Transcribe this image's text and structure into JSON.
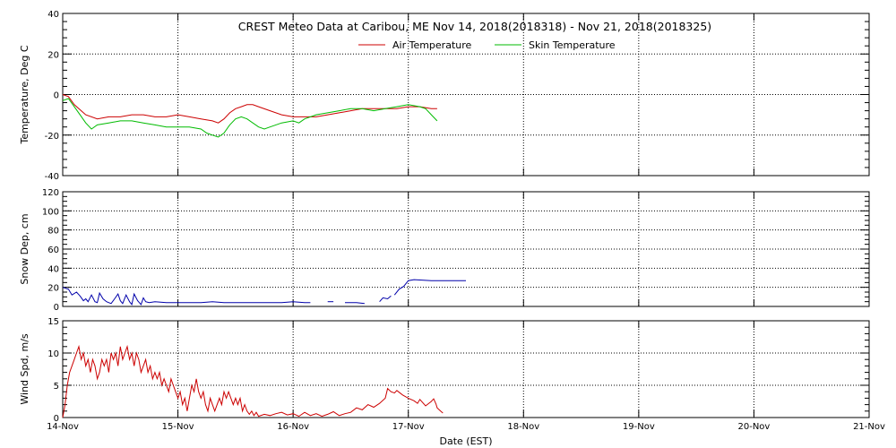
{
  "chart_data": [
    {
      "type": "line",
      "title": "CREST Meteo Data at Caribou, ME   Nov 14, 2018(2018318) - Nov 21, 2018(2018325)",
      "ylabel": "Temperature, Deg C",
      "ylim": [
        -40,
        40
      ],
      "yticks": [
        -40,
        -20,
        0,
        20,
        40
      ],
      "grid": true,
      "legend": "top-center",
      "series": [
        {
          "name": "Air Temperature",
          "color": "#cc0000",
          "points": [
            [
              0.0,
              0
            ],
            [
              0.05,
              -1
            ],
            [
              0.1,
              -5
            ],
            [
              0.2,
              -10
            ],
            [
              0.3,
              -12
            ],
            [
              0.4,
              -11
            ],
            [
              0.5,
              -11
            ],
            [
              0.6,
              -10
            ],
            [
              0.7,
              -10
            ],
            [
              0.8,
              -11
            ],
            [
              0.9,
              -11
            ],
            [
              1.0,
              -10
            ],
            [
              1.1,
              -11
            ],
            [
              1.2,
              -12
            ],
            [
              1.3,
              -13
            ],
            [
              1.35,
              -14
            ],
            [
              1.4,
              -12
            ],
            [
              1.45,
              -9
            ],
            [
              1.5,
              -7
            ],
            [
              1.55,
              -6
            ],
            [
              1.6,
              -5
            ],
            [
              1.65,
              -5
            ],
            [
              1.7,
              -6
            ],
            [
              1.8,
              -8
            ],
            [
              1.9,
              -10
            ],
            [
              2.0,
              -11
            ],
            [
              2.1,
              -11
            ],
            [
              2.2,
              -11
            ],
            [
              2.3,
              -10
            ],
            [
              2.4,
              -9
            ],
            [
              2.5,
              -8
            ],
            [
              2.6,
              -7
            ],
            [
              2.7,
              -7
            ],
            [
              2.8,
              -7
            ],
            [
              2.9,
              -7
            ],
            [
              3.0,
              -6
            ],
            [
              3.1,
              -6
            ],
            [
              3.2,
              -7
            ],
            [
              3.25,
              -7
            ]
          ]
        },
        {
          "name": "Skin Temperature",
          "color": "#00bb00",
          "points": [
            [
              0.0,
              -3
            ],
            [
              0.05,
              -2
            ],
            [
              0.1,
              -6
            ],
            [
              0.15,
              -10
            ],
            [
              0.2,
              -14
            ],
            [
              0.25,
              -17
            ],
            [
              0.3,
              -15
            ],
            [
              0.4,
              -14
            ],
            [
              0.5,
              -13
            ],
            [
              0.6,
              -13
            ],
            [
              0.7,
              -14
            ],
            [
              0.8,
              -15
            ],
            [
              0.9,
              -16
            ],
            [
              1.0,
              -16
            ],
            [
              1.1,
              -16
            ],
            [
              1.2,
              -17
            ],
            [
              1.25,
              -19
            ],
            [
              1.3,
              -20
            ],
            [
              1.35,
              -21
            ],
            [
              1.4,
              -19
            ],
            [
              1.45,
              -15
            ],
            [
              1.5,
              -12
            ],
            [
              1.55,
              -11
            ],
            [
              1.6,
              -12
            ],
            [
              1.7,
              -16
            ],
            [
              1.75,
              -17
            ],
            [
              1.8,
              -16
            ],
            [
              1.9,
              -14
            ],
            [
              2.0,
              -13
            ],
            [
              2.05,
              -14
            ],
            [
              2.1,
              -12
            ],
            [
              2.2,
              -10
            ],
            [
              2.3,
              -9
            ],
            [
              2.4,
              -8
            ],
            [
              2.5,
              -7
            ],
            [
              2.6,
              -7
            ],
            [
              2.7,
              -8
            ],
            [
              2.8,
              -7
            ],
            [
              2.9,
              -6
            ],
            [
              3.0,
              -5
            ],
            [
              3.1,
              -6
            ],
            [
              3.15,
              -7
            ],
            [
              3.2,
              -10
            ],
            [
              3.25,
              -13
            ]
          ]
        }
      ]
    },
    {
      "type": "line",
      "ylabel": "Snow Dep, cm",
      "ylim": [
        0,
        120
      ],
      "yticks": [
        0,
        20,
        40,
        60,
        80,
        100,
        120
      ],
      "grid": true,
      "series": [
        {
          "color": "#0000aa",
          "points": [
            [
              0.0,
              20
            ],
            [
              0.05,
              18
            ],
            [
              0.08,
              12
            ],
            [
              0.12,
              15
            ],
            [
              0.15,
              11
            ],
            [
              0.18,
              6
            ],
            [
              0.2,
              8
            ],
            [
              0.22,
              5
            ],
            [
              0.25,
              12
            ],
            [
              0.28,
              5
            ],
            [
              0.3,
              4
            ],
            [
              0.32,
              14
            ],
            [
              0.35,
              8
            ],
            [
              0.38,
              5
            ],
            [
              0.42,
              3
            ],
            [
              0.45,
              8
            ],
            [
              0.48,
              13
            ],
            [
              0.5,
              6
            ],
            [
              0.52,
              3
            ],
            [
              0.55,
              12
            ],
            [
              0.58,
              5
            ],
            [
              0.6,
              2
            ],
            [
              0.62,
              13
            ],
            [
              0.65,
              6
            ],
            [
              0.68,
              2
            ],
            [
              0.7,
              9
            ],
            [
              0.72,
              5
            ],
            [
              0.75,
              4
            ],
            [
              0.8,
              5
            ],
            [
              0.9,
              4
            ],
            [
              1.0,
              4
            ],
            [
              1.1,
              4
            ],
            [
              1.2,
              4
            ],
            [
              1.3,
              5
            ],
            [
              1.4,
              4
            ],
            [
              1.5,
              4
            ],
            [
              1.6,
              4
            ],
            [
              1.7,
              4
            ],
            [
              1.8,
              4
            ],
            [
              1.9,
              4
            ],
            [
              2.0,
              5
            ],
            [
              2.1,
              4
            ],
            [
              2.15,
              4
            ]
          ],
          "points_b": [
            [
              2.3,
              5
            ],
            [
              2.35,
              5
            ]
          ],
          "points_c": [
            [
              2.45,
              4
            ],
            [
              2.55,
              4
            ],
            [
              2.62,
              3
            ]
          ],
          "points_d": [
            [
              2.75,
              5
            ],
            [
              2.78,
              9
            ],
            [
              2.82,
              8
            ],
            [
              2.85,
              11
            ]
          ],
          "points_e": [
            [
              2.88,
              12
            ],
            [
              2.92,
              18
            ],
            [
              2.96,
              21
            ],
            [
              3.0,
              27
            ],
            [
              3.05,
              28
            ],
            [
              3.2,
              27
            ],
            [
              3.4,
              27
            ],
            [
              3.5,
              27
            ]
          ]
        }
      ]
    },
    {
      "type": "line",
      "xlabel": "Date (EST)",
      "ylabel": "Wind Spd, m/s",
      "ylim": [
        0,
        15
      ],
      "yticks": [
        0,
        5,
        10,
        15
      ],
      "x_tick_labels": [
        "14-Nov",
        "15-Nov",
        "16-Nov",
        "17-Nov",
        "18-Nov",
        "19-Nov",
        "20-Nov",
        "21-Nov"
      ],
      "xlim_days": [
        0,
        7
      ],
      "grid": true,
      "series": [
        {
          "color": "#cc0000",
          "points": [
            [
              0.0,
              0
            ],
            [
              0.02,
              2
            ],
            [
              0.04,
              5
            ],
            [
              0.06,
              7
            ],
            [
              0.08,
              8
            ],
            [
              0.1,
              9
            ],
            [
              0.12,
              10
            ],
            [
              0.14,
              11
            ],
            [
              0.16,
              9
            ],
            [
              0.18,
              10
            ],
            [
              0.2,
              8
            ],
            [
              0.22,
              9
            ],
            [
              0.24,
              7
            ],
            [
              0.26,
              9
            ],
            [
              0.28,
              8
            ],
            [
              0.3,
              6
            ],
            [
              0.32,
              7
            ],
            [
              0.34,
              9
            ],
            [
              0.36,
              8
            ],
            [
              0.38,
              9
            ],
            [
              0.4,
              7
            ],
            [
              0.42,
              10
            ],
            [
              0.44,
              9
            ],
            [
              0.46,
              10
            ],
            [
              0.48,
              8
            ],
            [
              0.5,
              11
            ],
            [
              0.52,
              9
            ],
            [
              0.54,
              10
            ],
            [
              0.56,
              11
            ],
            [
              0.58,
              9
            ],
            [
              0.6,
              10
            ],
            [
              0.62,
              8
            ],
            [
              0.64,
              10
            ],
            [
              0.66,
              9
            ],
            [
              0.68,
              7
            ],
            [
              0.7,
              8
            ],
            [
              0.72,
              9
            ],
            [
              0.74,
              7
            ],
            [
              0.76,
              8
            ],
            [
              0.78,
              6
            ],
            [
              0.8,
              7
            ],
            [
              0.82,
              6
            ],
            [
              0.84,
              7
            ],
            [
              0.86,
              5
            ],
            [
              0.88,
              6
            ],
            [
              0.9,
              5
            ],
            [
              0.92,
              4
            ],
            [
              0.94,
              6
            ],
            [
              0.96,
              5
            ],
            [
              0.98,
              4
            ],
            [
              1.0,
              3
            ],
            [
              1.02,
              4
            ],
            [
              1.04,
              2
            ],
            [
              1.06,
              3
            ],
            [
              1.08,
              1
            ],
            [
              1.1,
              3
            ],
            [
              1.12,
              5
            ],
            [
              1.14,
              4
            ],
            [
              1.16,
              6
            ],
            [
              1.18,
              4
            ],
            [
              1.2,
              3
            ],
            [
              1.22,
              4
            ],
            [
              1.24,
              2
            ],
            [
              1.26,
              1
            ],
            [
              1.28,
              3
            ],
            [
              1.3,
              2
            ],
            [
              1.32,
              1
            ],
            [
              1.34,
              2
            ],
            [
              1.36,
              3
            ],
            [
              1.38,
              2
            ],
            [
              1.4,
              4
            ],
            [
              1.42,
              3
            ],
            [
              1.44,
              4
            ],
            [
              1.46,
              3
            ],
            [
              1.48,
              2
            ],
            [
              1.5,
              3
            ],
            [
              1.52,
              2
            ],
            [
              1.54,
              3
            ],
            [
              1.56,
              1
            ],
            [
              1.58,
              2
            ],
            [
              1.6,
              1
            ],
            [
              1.62,
              0.5
            ],
            [
              1.64,
              1
            ],
            [
              1.66,
              0.3
            ],
            [
              1.68,
              0.8
            ],
            [
              1.7,
              0.2
            ],
            [
              1.75,
              0.5
            ],
            [
              1.8,
              0.3
            ],
            [
              1.85,
              0.6
            ],
            [
              1.9,
              0.8
            ],
            [
              1.95,
              0.4
            ],
            [
              2.0,
              0.6
            ],
            [
              2.05,
              0.2
            ],
            [
              2.1,
              0.8
            ],
            [
              2.15,
              0.3
            ],
            [
              2.2,
              0.6
            ],
            [
              2.25,
              0.2
            ],
            [
              2.3,
              0.5
            ],
            [
              2.35,
              0.9
            ],
            [
              2.4,
              0.3
            ],
            [
              2.45,
              0.6
            ],
            [
              2.5,
              0.8
            ],
            [
              2.55,
              1.5
            ],
            [
              2.6,
              1.2
            ],
            [
              2.65,
              2
            ],
            [
              2.7,
              1.6
            ],
            [
              2.75,
              2.2
            ],
            [
              2.8,
              3
            ],
            [
              2.82,
              4.5
            ],
            [
              2.85,
              4
            ],
            [
              2.88,
              3.8
            ],
            [
              2.9,
              4.2
            ],
            [
              2.95,
              3.5
            ],
            [
              3.0,
              3
            ],
            [
              3.05,
              2.6
            ],
            [
              3.08,
              2.2
            ],
            [
              3.1,
              2.8
            ],
            [
              3.15,
              1.8
            ],
            [
              3.2,
              2.5
            ],
            [
              3.22,
              2.9
            ],
            [
              3.24,
              2.1
            ],
            [
              3.25,
              1.5
            ],
            [
              3.28,
              1.0
            ],
            [
              3.3,
              0.7
            ]
          ]
        }
      ]
    }
  ]
}
